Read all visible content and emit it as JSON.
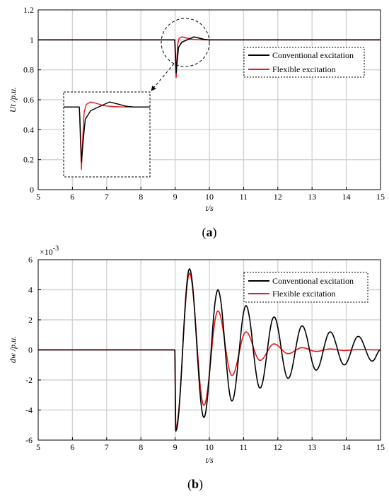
{
  "chart_data": [
    {
      "type": "line",
      "caption_letter": "a",
      "xlabel": "t/s",
      "ylabel": "Ut /p.u.",
      "xlim": [
        5,
        15
      ],
      "ylim": [
        0,
        1.2
      ],
      "xticks": [
        "5",
        "6",
        "7",
        "8",
        "9",
        "10",
        "11",
        "12",
        "13",
        "14",
        "15"
      ],
      "yticks": [
        "0",
        "0.2",
        "0.4",
        "0.6",
        "0.8",
        "1",
        "1.2"
      ],
      "grid": true,
      "legend_position": "top-right",
      "series": [
        {
          "name": "Conventional excitation",
          "color": "#000000",
          "x": [
            5,
            8.99,
            9.0,
            9.03,
            9.06,
            9.1,
            9.2,
            9.3,
            9.4,
            9.55,
            9.7,
            9.85,
            10.0,
            10.5,
            15
          ],
          "y": [
            1.0,
            1.0,
            0.96,
            0.78,
            0.86,
            0.95,
            0.985,
            0.995,
            1.005,
            1.02,
            1.012,
            1.003,
            1.0,
            1.0,
            1.0
          ]
        },
        {
          "name": "Flexible excitation",
          "color": "#e31a1c",
          "x": [
            5,
            8.99,
            9.0,
            9.03,
            9.05,
            9.08,
            9.12,
            9.2,
            9.3,
            9.45,
            9.6,
            9.8,
            10.0,
            15
          ],
          "y": [
            1.0,
            1.0,
            0.93,
            0.75,
            0.86,
            0.98,
            1.01,
            1.02,
            1.015,
            1.005,
            1.002,
            1.0,
            1.0,
            1.0
          ]
        }
      ],
      "annotation": "zoomed inset of the transient near t = 9 s"
    },
    {
      "type": "line",
      "caption_letter": "b",
      "xlabel": "t/s",
      "ylabel": "dw /p.u.",
      "multiplier": "×10",
      "multiplier_exp": "-3",
      "xlim": [
        5,
        15
      ],
      "ylim": [
        -6,
        6
      ],
      "xticks": [
        "5",
        "6",
        "7",
        "8",
        "9",
        "10",
        "11",
        "12",
        "13",
        "14",
        "15"
      ],
      "yticks": [
        "-6",
        "-4",
        "-2",
        "0",
        "2",
        "4",
        "6"
      ],
      "grid": true,
      "legend_position": "top-right",
      "series": [
        {
          "name": "Conventional excitation",
          "color": "#000000",
          "peaks": [
            [
              9.02,
              -5.4
            ],
            [
              9.42,
              5.4
            ],
            [
              9.84,
              -4.5
            ],
            [
              10.25,
              4.0
            ],
            [
              10.66,
              -3.4
            ],
            [
              11.07,
              2.95
            ],
            [
              11.48,
              -2.55
            ],
            [
              11.89,
              2.2
            ],
            [
              12.3,
              -1.9
            ],
            [
              12.71,
              1.6
            ],
            [
              13.12,
              -1.35
            ],
            [
              13.53,
              1.2
            ],
            [
              13.94,
              -1.0
            ],
            [
              14.35,
              0.9
            ],
            [
              14.76,
              -0.75
            ],
            [
              15.0,
              0.0
            ]
          ]
        },
        {
          "name": "Flexible excitation",
          "color": "#e31a1c",
          "peaks": [
            [
              9.02,
              -5.2
            ],
            [
              9.42,
              5.1
            ],
            [
              9.84,
              -3.7
            ],
            [
              10.25,
              2.6
            ],
            [
              10.66,
              -1.7
            ],
            [
              11.07,
              1.2
            ],
            [
              11.48,
              -0.7
            ],
            [
              11.89,
              0.4
            ],
            [
              12.3,
              -0.25
            ],
            [
              12.71,
              0.15
            ],
            [
              13.12,
              -0.1
            ],
            [
              13.53,
              0.06
            ],
            [
              13.94,
              -0.04
            ],
            [
              14.35,
              0.02
            ],
            [
              15.0,
              0.0
            ]
          ]
        }
      ]
    }
  ]
}
